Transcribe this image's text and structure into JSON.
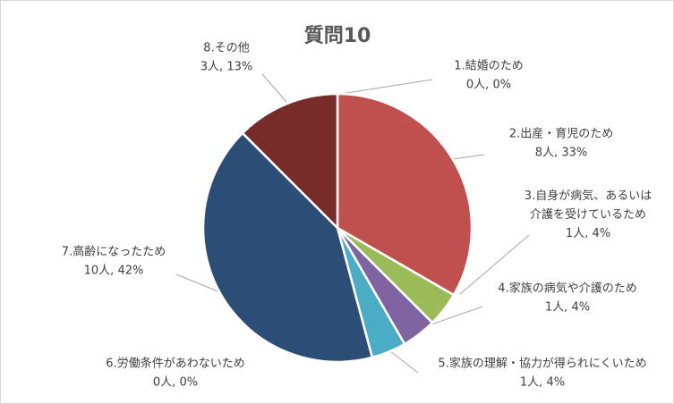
{
  "chart_data": {
    "type": "pie",
    "title": "質問10",
    "slices": [
      {
        "label": "1.結婚のため",
        "count_label": "0人, 0%",
        "value": 0,
        "percent": 0,
        "color": "#2f527a"
      },
      {
        "label": "2.出産・育児のため",
        "count_label": "8人, 33%",
        "value": 8,
        "percent": 33,
        "color": "#c0504d"
      },
      {
        "label_lines": [
          "3.自身が病気、あるいは",
          "介護を受けているため"
        ],
        "count_label": "1人, 4%",
        "value": 1,
        "percent": 4,
        "color": "#9bbb59"
      },
      {
        "label": "4.家族の病気や介護のため",
        "count_label": "1人, 4%",
        "value": 1,
        "percent": 4,
        "color": "#8064a2"
      },
      {
        "label": "5.家族の理解・協力が得られにくいため",
        "count_label": "1人, 4%",
        "value": 1,
        "percent": 4,
        "color": "#4bacc6"
      },
      {
        "label": "6.労働条件があわないため",
        "count_label": "0人, 0%",
        "value": 0,
        "percent": 0,
        "color": "#f79646"
      },
      {
        "label": "7.高齢になったため",
        "count_label": "10人, 42%",
        "value": 10,
        "percent": 42,
        "color": "#2c4d75"
      },
      {
        "label": "8.その他",
        "count_label": "3人, 13%",
        "value": 3,
        "percent": 13,
        "color": "#772c2a"
      }
    ],
    "legend": "none"
  }
}
